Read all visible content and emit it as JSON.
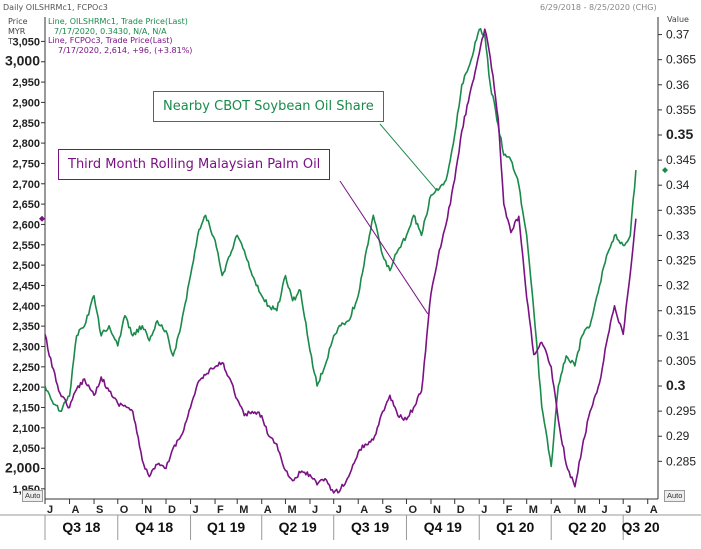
{
  "header": {
    "title": "Daily OILSHRMc1, FCPOc3",
    "date_range": "6/29/2018 - 8/25/2020 (CHG)"
  },
  "axis_units": {
    "left": [
      "Price",
      "MYR",
      "T"
    ],
    "right": "Value"
  },
  "legend": {
    "row1": "Line, OILSHRMc1, Trade Price(Last)",
    "row1b": "7/17/2020, 0.3430, N/A, N/A",
    "row2": "Line, FCPOc3, Trade Price(Last)",
    "row2b": "7/17/2020, 2,614, +96, (+3.81%)"
  },
  "annotations": {
    "soy": "Nearby CBOT Soybean Oil Share",
    "palm": "Third Month Rolling Malaysian Palm Oil"
  },
  "auto_label": "Auto",
  "colors": {
    "soy": "#1a8a4a",
    "palm": "#7a1285",
    "axis": "#333333",
    "grid": "#dddddd"
  },
  "chart_data": {
    "type": "line",
    "x_range": [
      "2018-07-01",
      "2020-08-14"
    ],
    "left_axis": {
      "unit": "MYR/T",
      "ylim": [
        1925,
        3110
      ],
      "ticks": [
        1950,
        2000,
        2050,
        2100,
        2150,
        2200,
        2250,
        2300,
        2350,
        2400,
        2450,
        2500,
        2550,
        2600,
        2650,
        2700,
        2750,
        2800,
        2850,
        2900,
        2950,
        3000,
        3050
      ],
      "tick_labels": [
        "1,950",
        "2,000",
        "2,050",
        "2,100",
        "2,150",
        "2,200",
        "2,250",
        "2,300",
        "2,350",
        "2,400",
        "2,450",
        "2,500",
        "2,550",
        "2,600",
        "2,650",
        "2,700",
        "2,750",
        "2,800",
        "2,850",
        "2,900",
        "2,950",
        "3,000",
        "3,050"
      ]
    },
    "right_axis": {
      "ylim": [
        0.2775,
        0.3735
      ],
      "ticks": [
        0.285,
        0.29,
        0.295,
        0.3,
        0.305,
        0.31,
        0.315,
        0.32,
        0.325,
        0.33,
        0.335,
        0.34,
        0.345,
        0.35,
        0.355,
        0.36,
        0.365,
        0.37
      ],
      "tick_labels": [
        "0.285",
        "0.29",
        "0.295",
        "0.3",
        "0.305",
        "0.31",
        "0.315",
        "0.32",
        "0.325",
        "0.33",
        "0.335",
        "0.34",
        "0.345",
        "0.35",
        "0.355",
        "0.36",
        "0.365",
        "0.37"
      ],
      "bold_ticks": [
        "0.3",
        "0.35"
      ]
    },
    "month_labels": [
      "J",
      "A",
      "S",
      "O",
      "N",
      "D",
      "J",
      "F",
      "M",
      "A",
      "M",
      "J",
      "J",
      "A",
      "S",
      "O",
      "N",
      "D",
      "J",
      "F",
      "M",
      "A",
      "M",
      "J",
      "J",
      "A"
    ],
    "quarter_labels": [
      "Q3 18",
      "Q4 18",
      "Q1 19",
      "Q2 19",
      "Q3 19",
      "Q4 19",
      "Q1 20",
      "Q2 20",
      "Q3 20"
    ],
    "series": [
      {
        "name": "OILSHRMc1",
        "axis": "right",
        "color": "#1a8a4a",
        "points": [
          [
            "2018-07-01",
            0.3
          ],
          [
            "2018-07-10",
            0.297
          ],
          [
            "2018-07-20",
            0.295
          ],
          [
            "2018-08-01",
            0.298
          ],
          [
            "2018-08-10",
            0.31
          ],
          [
            "2018-08-20",
            0.312
          ],
          [
            "2018-09-01",
            0.318
          ],
          [
            "2018-09-10",
            0.31
          ],
          [
            "2018-09-20",
            0.312
          ],
          [
            "2018-10-01",
            0.308
          ],
          [
            "2018-10-10",
            0.314
          ],
          [
            "2018-10-20",
            0.31
          ],
          [
            "2018-11-01",
            0.312
          ],
          [
            "2018-11-10",
            0.309
          ],
          [
            "2018-11-20",
            0.313
          ],
          [
            "2018-12-01",
            0.311
          ],
          [
            "2018-12-10",
            0.306
          ],
          [
            "2018-12-20",
            0.312
          ],
          [
            "2019-01-01",
            0.322
          ],
          [
            "2019-01-10",
            0.33
          ],
          [
            "2019-01-20",
            0.334
          ],
          [
            "2019-02-01",
            0.329
          ],
          [
            "2019-02-10",
            0.322
          ],
          [
            "2019-02-20",
            0.326
          ],
          [
            "2019-03-01",
            0.33
          ],
          [
            "2019-03-10",
            0.327
          ],
          [
            "2019-03-20",
            0.322
          ],
          [
            "2019-04-01",
            0.318
          ],
          [
            "2019-04-10",
            0.316
          ],
          [
            "2019-04-20",
            0.315
          ],
          [
            "2019-05-01",
            0.322
          ],
          [
            "2019-05-10",
            0.317
          ],
          [
            "2019-05-20",
            0.319
          ],
          [
            "2019-06-01",
            0.307
          ],
          [
            "2019-06-10",
            0.3
          ],
          [
            "2019-06-20",
            0.304
          ],
          [
            "2019-07-01",
            0.31
          ],
          [
            "2019-07-10",
            0.312
          ],
          [
            "2019-07-20",
            0.313
          ],
          [
            "2019-08-01",
            0.318
          ],
          [
            "2019-08-10",
            0.326
          ],
          [
            "2019-08-20",
            0.334
          ],
          [
            "2019-09-01",
            0.326
          ],
          [
            "2019-09-10",
            0.323
          ],
          [
            "2019-09-20",
            0.327
          ],
          [
            "2019-10-01",
            0.33
          ],
          [
            "2019-10-10",
            0.334
          ],
          [
            "2019-10-20",
            0.33
          ],
          [
            "2019-11-01",
            0.338
          ],
          [
            "2019-11-10",
            0.339
          ],
          [
            "2019-11-20",
            0.341
          ],
          [
            "2019-12-01",
            0.35
          ],
          [
            "2019-12-10",
            0.36
          ],
          [
            "2019-12-20",
            0.364
          ],
          [
            "2020-01-01",
            0.371
          ],
          [
            "2020-01-08",
            0.37
          ],
          [
            "2020-01-15",
            0.36
          ],
          [
            "2020-01-25",
            0.352
          ],
          [
            "2020-02-01",
            0.346
          ],
          [
            "2020-02-10",
            0.345
          ],
          [
            "2020-02-20",
            0.34
          ],
          [
            "2020-03-01",
            0.33
          ],
          [
            "2020-03-10",
            0.315
          ],
          [
            "2020-03-20",
            0.296
          ],
          [
            "2020-04-01",
            0.284
          ],
          [
            "2020-04-10",
            0.3
          ],
          [
            "2020-04-20",
            0.306
          ],
          [
            "2020-05-01",
            0.304
          ],
          [
            "2020-05-10",
            0.31
          ],
          [
            "2020-05-20",
            0.312
          ],
          [
            "2020-06-01",
            0.32
          ],
          [
            "2020-06-10",
            0.326
          ],
          [
            "2020-06-20",
            0.33
          ],
          [
            "2020-07-01",
            0.328
          ],
          [
            "2020-07-10",
            0.33
          ],
          [
            "2020-07-17",
            0.343
          ]
        ]
      },
      {
        "name": "FCPOc3",
        "axis": "left",
        "color": "#7a1285",
        "points": [
          [
            "2018-07-01",
            2330
          ],
          [
            "2018-07-10",
            2250
          ],
          [
            "2018-07-20",
            2185
          ],
          [
            "2018-08-01",
            2150
          ],
          [
            "2018-08-10",
            2195
          ],
          [
            "2018-08-20",
            2220
          ],
          [
            "2018-09-01",
            2180
          ],
          [
            "2018-09-10",
            2225
          ],
          [
            "2018-09-20",
            2190
          ],
          [
            "2018-10-01",
            2160
          ],
          [
            "2018-10-10",
            2155
          ],
          [
            "2018-10-20",
            2140
          ],
          [
            "2018-11-01",
            2020
          ],
          [
            "2018-11-10",
            1980
          ],
          [
            "2018-11-20",
            2010
          ],
          [
            "2018-12-01",
            2000
          ],
          [
            "2018-12-10",
            2050
          ],
          [
            "2018-12-20",
            2080
          ],
          [
            "2019-01-01",
            2150
          ],
          [
            "2019-01-10",
            2210
          ],
          [
            "2019-01-20",
            2230
          ],
          [
            "2019-02-01",
            2250
          ],
          [
            "2019-02-10",
            2260
          ],
          [
            "2019-02-20",
            2220
          ],
          [
            "2019-03-01",
            2170
          ],
          [
            "2019-03-10",
            2130
          ],
          [
            "2019-03-20",
            2140
          ],
          [
            "2019-04-01",
            2130
          ],
          [
            "2019-04-10",
            2080
          ],
          [
            "2019-04-20",
            2060
          ],
          [
            "2019-05-01",
            1995
          ],
          [
            "2019-05-10",
            1970
          ],
          [
            "2019-05-20",
            1990
          ],
          [
            "2019-06-01",
            1985
          ],
          [
            "2019-06-10",
            1960
          ],
          [
            "2019-06-20",
            1975
          ],
          [
            "2019-07-01",
            1940
          ],
          [
            "2019-07-10",
            1950
          ],
          [
            "2019-07-20",
            1980
          ],
          [
            "2019-08-01",
            2040
          ],
          [
            "2019-08-10",
            2060
          ],
          [
            "2019-08-20",
            2070
          ],
          [
            "2019-09-01",
            2140
          ],
          [
            "2019-09-10",
            2180
          ],
          [
            "2019-09-20",
            2130
          ],
          [
            "2019-10-01",
            2120
          ],
          [
            "2019-10-10",
            2150
          ],
          [
            "2019-10-20",
            2190
          ],
          [
            "2019-11-01",
            2430
          ],
          [
            "2019-11-10",
            2520
          ],
          [
            "2019-11-20",
            2600
          ],
          [
            "2019-12-01",
            2710
          ],
          [
            "2019-12-10",
            2830
          ],
          [
            "2019-12-20",
            2920
          ],
          [
            "2020-01-01",
            3020
          ],
          [
            "2020-01-08",
            3080
          ],
          [
            "2020-01-15",
            3010
          ],
          [
            "2020-01-25",
            2860
          ],
          [
            "2020-02-01",
            2650
          ],
          [
            "2020-02-10",
            2580
          ],
          [
            "2020-02-20",
            2620
          ],
          [
            "2020-03-01",
            2420
          ],
          [
            "2020-03-10",
            2280
          ],
          [
            "2020-03-20",
            2310
          ],
          [
            "2020-04-01",
            2250
          ],
          [
            "2020-04-10",
            2120
          ],
          [
            "2020-04-20",
            2010
          ],
          [
            "2020-05-01",
            1955
          ],
          [
            "2020-05-10",
            2050
          ],
          [
            "2020-05-20",
            2140
          ],
          [
            "2020-06-01",
            2210
          ],
          [
            "2020-06-10",
            2310
          ],
          [
            "2020-06-20",
            2400
          ],
          [
            "2020-07-01",
            2330
          ],
          [
            "2020-07-10",
            2480
          ],
          [
            "2020-07-17",
            2614
          ]
        ]
      }
    ]
  }
}
